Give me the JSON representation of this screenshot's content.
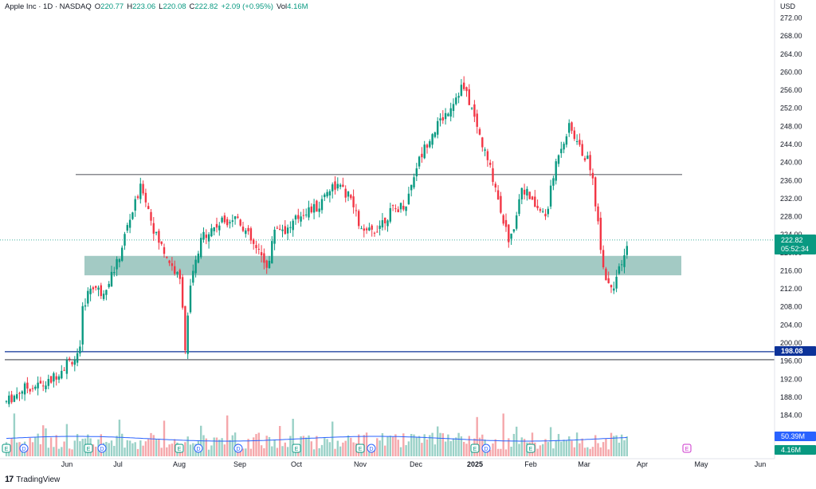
{
  "legend": {
    "symbol": "Apple Inc · 1D · NASDAQ",
    "o_label": "O",
    "o": "220.77",
    "h_label": "H",
    "h": "223.06",
    "l_label": "L",
    "l": "220.08",
    "c_label": "C",
    "c": "222.82",
    "change": "+2.09 (+0.95%)",
    "vol_label": "Vol",
    "vol": "4.16M"
  },
  "axis": {
    "currency": "USD",
    "price_ticks": [
      "272.00",
      "268.00",
      "264.00",
      "260.00",
      "256.00",
      "252.00",
      "248.00",
      "244.00",
      "240.00",
      "236.00",
      "232.00",
      "228.00",
      "224.00",
      "220.00",
      "216.00",
      "212.00",
      "208.00",
      "204.00",
      "200.00",
      "196.00",
      "192.00",
      "188.00",
      "184.00"
    ],
    "month_labels": [
      "Jun",
      "Jul",
      "Aug",
      "Sep",
      "Oct",
      "Nov",
      "Dec",
      "2025",
      "Feb",
      "Mar",
      "Apr",
      "May",
      "Jun"
    ]
  },
  "price_tags": {
    "last_price": "222.82",
    "countdown": "05:52:34",
    "support_line": "198.08",
    "volume_ma": "50.39M",
    "volume": "4.16M"
  },
  "brand": "TradingView",
  "colors": {
    "up": "#089981",
    "down": "#f23645",
    "zone": "#7fb5ad",
    "hline_blue": "#0c3299",
    "vol_ma": "#2962ff"
  },
  "chart_data": {
    "type": "candlestick",
    "title": "Apple Inc · 1D · NASDAQ",
    "ylim": [
      182,
      274
    ],
    "y_unit": "USD",
    "x_categories": [
      "May",
      "Jun",
      "Jul",
      "Aug",
      "Sep",
      "Oct",
      "Nov",
      "Dec",
      "2025",
      "Feb",
      "Mar",
      "Apr",
      "May",
      "Jun"
    ],
    "monthly_path": [
      {
        "month": "May 2024",
        "close": 191
      },
      {
        "month": "Jun 2024",
        "close": 210
      },
      {
        "month": "Jul 2024",
        "close": 222
      },
      {
        "month": "Aug 2024",
        "close": 229
      },
      {
        "month": "Sep 2024",
        "close": 233
      },
      {
        "month": "Oct 2024",
        "close": 226
      },
      {
        "month": "Nov 2024",
        "close": 237
      },
      {
        "month": "Dec 2024",
        "close": 250
      },
      {
        "month": "Jan 2025",
        "close": 236
      },
      {
        "month": "Feb 2025",
        "close": 241
      },
      {
        "month": "Mar 2025",
        "close": 222.82
      }
    ],
    "horizontal_lines": [
      237.3,
      198.08,
      196.3
    ],
    "zone": [
      215,
      219.3
    ],
    "last_close": 222.82,
    "volume_ma": "50.39M",
    "last_volume": "4.16M"
  }
}
